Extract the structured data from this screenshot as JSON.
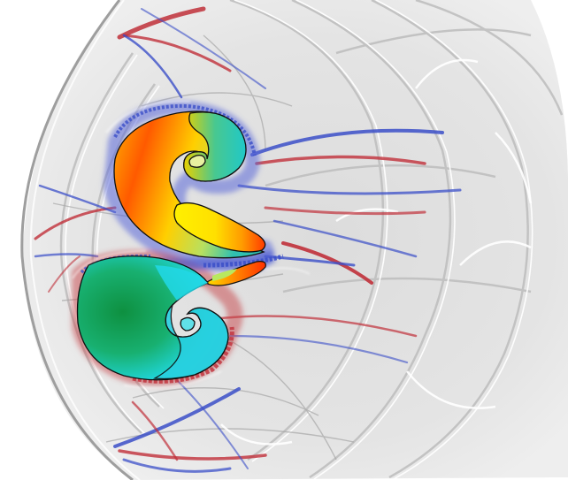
{
  "image": {
    "subject": "shock-bubble-interaction-simulation",
    "colors": {
      "background": "#ffffff",
      "schlieren_light": "#f2f2f2",
      "schlieren_mid": "#d2d2d2",
      "schlieren_dark": "#9a9a9a",
      "vorticity_negative": "#3b4fc8",
      "vorticity_positive": "#c0303a",
      "bubble_upper_hot": "#ff4a00",
      "bubble_upper_warm": "#ffb400",
      "bubble_upper_yellow": "#fff000",
      "bubble_upper_cool": "#38c8a8",
      "bubble_lower_green": "#10a050",
      "bubble_lower_cyan": "#20e8f0",
      "bubble_lower_teal": "#30c0c8",
      "bubble_outline": "#101010"
    }
  }
}
